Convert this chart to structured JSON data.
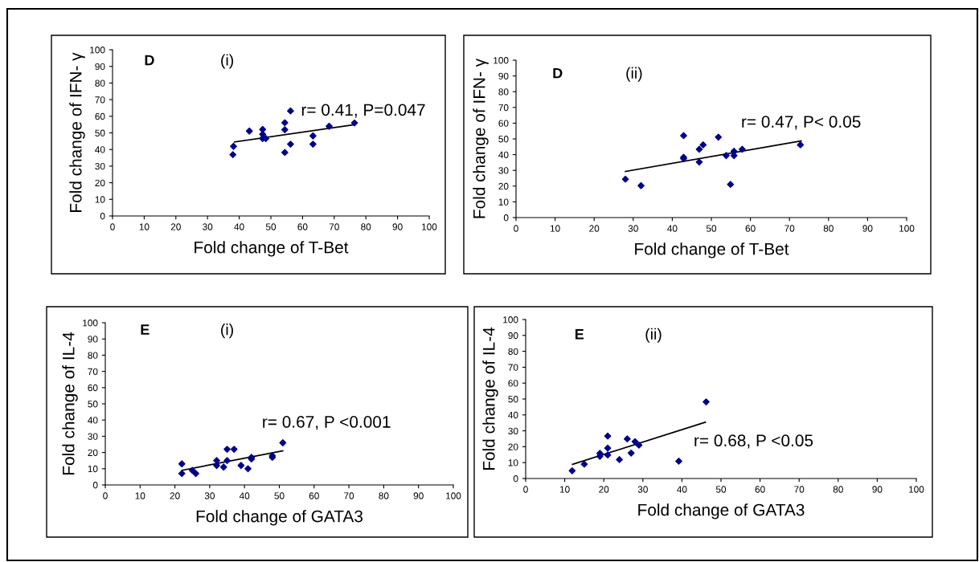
{
  "chart_data": [
    {
      "type": "scatter",
      "xlabel": "Fold change of T-Bet",
      "ylabel": "Fold change of IFN- γ",
      "xlim": [
        0,
        100
      ],
      "ylim": [
        0,
        100
      ],
      "xticks": [
        0,
        10,
        20,
        30,
        40,
        50,
        60,
        70,
        80,
        90,
        100
      ],
      "yticks": [
        0,
        10,
        20,
        30,
        40,
        50,
        60,
        70,
        80,
        90,
        100
      ],
      "grid": false,
      "annotations": [
        "D",
        "(i)",
        "r= 0.41, P=0.047"
      ],
      "series": [
        {
          "marker": "diamond",
          "color": "#00008b",
          "x": [
            38.2,
            38,
            43.2,
            47.4,
            47.4,
            47.4,
            48.4,
            54.4,
            54.4,
            54.4,
            56.2,
            56.2,
            63.3,
            63.3,
            68.4,
            76.4
          ],
          "values": [
            41.9,
            36.9,
            51.1,
            52.1,
            49.2,
            46.6,
            46.6,
            56.1,
            51.9,
            38.2,
            63.2,
            43.2,
            48.2,
            43.2,
            54,
            56
          ]
        },
        {
          "type": "line",
          "color": "#000000",
          "x": [
            38.5,
            76
          ],
          "values": [
            44.5,
            54.8
          ]
        }
      ]
    },
    {
      "type": "scatter",
      "xlabel": "Fold change of T-Bet",
      "ylabel": "Fold change of IFN- γ",
      "xlim": [
        0,
        100
      ],
      "ylim": [
        0,
        100
      ],
      "xticks": [
        0,
        10,
        20,
        30,
        40,
        50,
        60,
        70,
        80,
        90,
        100
      ],
      "yticks": [
        0,
        10,
        20,
        30,
        40,
        50,
        60,
        70,
        80,
        90,
        100
      ],
      "grid": false,
      "annotations": [
        "D",
        "(ii)",
        "r= 0.47, P< 0.05"
      ],
      "series": [
        {
          "marker": "diamond",
          "color": "#00008b",
          "x": [
            28,
            32,
            42.9,
            42.9,
            42.9,
            46.9,
            46.9,
            47.9,
            51.8,
            53.8,
            54.9,
            55.8,
            55.8,
            57.9,
            72.8
          ],
          "values": [
            24.4,
            20.3,
            52.1,
            38.3,
            37.5,
            43.4,
            35.3,
            46.2,
            51.1,
            39.4,
            21.1,
            42.1,
            39.4,
            43.4,
            46.2
          ]
        },
        {
          "type": "line",
          "color": "#000000",
          "x": [
            28,
            73
          ],
          "values": [
            29.3,
            48.7
          ]
        }
      ]
    },
    {
      "type": "scatter",
      "xlabel": "Fold change of GATA3",
      "ylabel": "Fold change of IL-4",
      "xlim": [
        0,
        100
      ],
      "ylim": [
        0,
        100
      ],
      "xticks": [
        0,
        10,
        20,
        30,
        40,
        50,
        60,
        70,
        80,
        90,
        100
      ],
      "yticks": [
        0,
        10,
        20,
        30,
        40,
        50,
        60,
        70,
        80,
        90,
        100
      ],
      "grid": false,
      "annotations": [
        "E",
        "(i)",
        "r= 0.67, P <0.001"
      ],
      "series": [
        {
          "marker": "diamond",
          "color": "#00008b",
          "x": [
            22,
            22,
            25,
            26,
            32,
            32,
            34,
            35,
            35,
            37,
            39,
            41,
            42,
            42,
            48,
            48,
            51
          ],
          "values": [
            13,
            7,
            9,
            7,
            15,
            12,
            11,
            22,
            15,
            22,
            12,
            10,
            16,
            17,
            17,
            18,
            26
          ]
        },
        {
          "type": "line",
          "color": "#000000",
          "x": [
            22,
            51
          ],
          "values": [
            9,
            21
          ]
        }
      ]
    },
    {
      "type": "scatter",
      "xlabel": "Fold change of GATA3",
      "ylabel": "Fold change of IL-4",
      "xlim": [
        0,
        100
      ],
      "ylim": [
        0,
        100
      ],
      "xticks": [
        0,
        10,
        20,
        30,
        40,
        50,
        60,
        70,
        80,
        90,
        100
      ],
      "yticks": [
        0,
        10,
        20,
        30,
        40,
        50,
        60,
        70,
        80,
        90,
        100
      ],
      "grid": false,
      "annotations": [
        "E",
        "(ii)",
        "r= 0.68, P <0.05"
      ],
      "series": [
        {
          "marker": "diamond",
          "color": "#00008b",
          "x": [
            11.9,
            15,
            19,
            19,
            21,
            21,
            21,
            24,
            26,
            27,
            28,
            29,
            39.2,
            46.2
          ],
          "values": [
            4.9,
            9,
            15.8,
            14,
            26.7,
            19.1,
            14.8,
            11.9,
            24.9,
            16,
            23.2,
            21,
            10.9,
            48.2
          ]
        },
        {
          "type": "line",
          "color": "#000000",
          "x": [
            12,
            46
          ],
          "values": [
            8.9,
            35.4
          ]
        }
      ]
    }
  ]
}
